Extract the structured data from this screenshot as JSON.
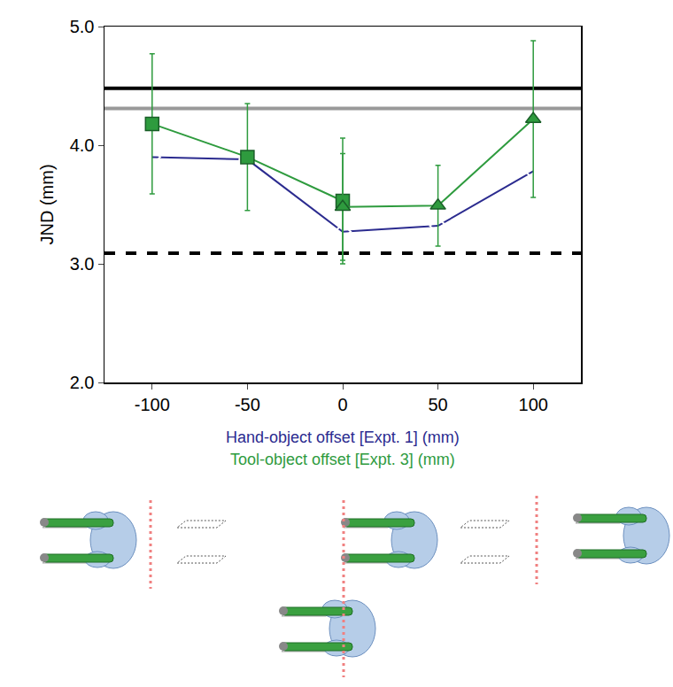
{
  "chart_data": {
    "type": "line",
    "ylabel": "JND (mm)",
    "xlabel_lines": [
      {
        "text": "Hand-object offset [Expt. 1] (mm)",
        "color": "#2b2b8f"
      },
      {
        "text": "Tool-object offset [Expt. 3] (mm)",
        "color": "#2e9b3e"
      }
    ],
    "xlim": [
      -125,
      125
    ],
    "xticks": [
      -100,
      -50,
      0,
      50,
      100
    ],
    "ylim": [
      2.0,
      5.0
    ],
    "yticks": [
      {
        "value": 2.0,
        "label": "2.0"
      },
      {
        "value": 3.0,
        "label": "3.0"
      },
      {
        "value": 4.0,
        "label": "4.0"
      },
      {
        "value": 5.0,
        "label": "5.0"
      }
    ],
    "grid": false,
    "series": [
      {
        "x": [
          -100,
          -50,
          0,
          50,
          100
        ],
        "values": [
          3.9,
          3.88,
          3.27,
          3.32,
          3.78
        ],
        "color": "#2b2b8f",
        "marker": "diamond-open",
        "line_style": "solid"
      },
      {
        "x": [
          -100,
          -50,
          0
        ],
        "values": [
          4.18,
          3.9,
          3.53
        ],
        "errors": [
          0.59,
          0.45,
          0.53
        ],
        "color": "#2e9b3e",
        "marker": "square",
        "line_style": "solid"
      },
      {
        "x": [
          0,
          50,
          100
        ],
        "values": [
          3.48,
          3.49,
          4.22
        ],
        "errors": [
          0.45,
          0.34,
          0.66
        ],
        "color": "#2e9b3e",
        "marker": "triangle-up",
        "line_style": "solid"
      }
    ],
    "reference_lines": [
      {
        "value": 4.48,
        "color": "#000000",
        "line_style": "solid"
      },
      {
        "value": 4.31,
        "color": "#999999",
        "line_style": "solid"
      },
      {
        "value": 3.09,
        "color": "#000000",
        "line_style": "dash"
      }
    ]
  }
}
